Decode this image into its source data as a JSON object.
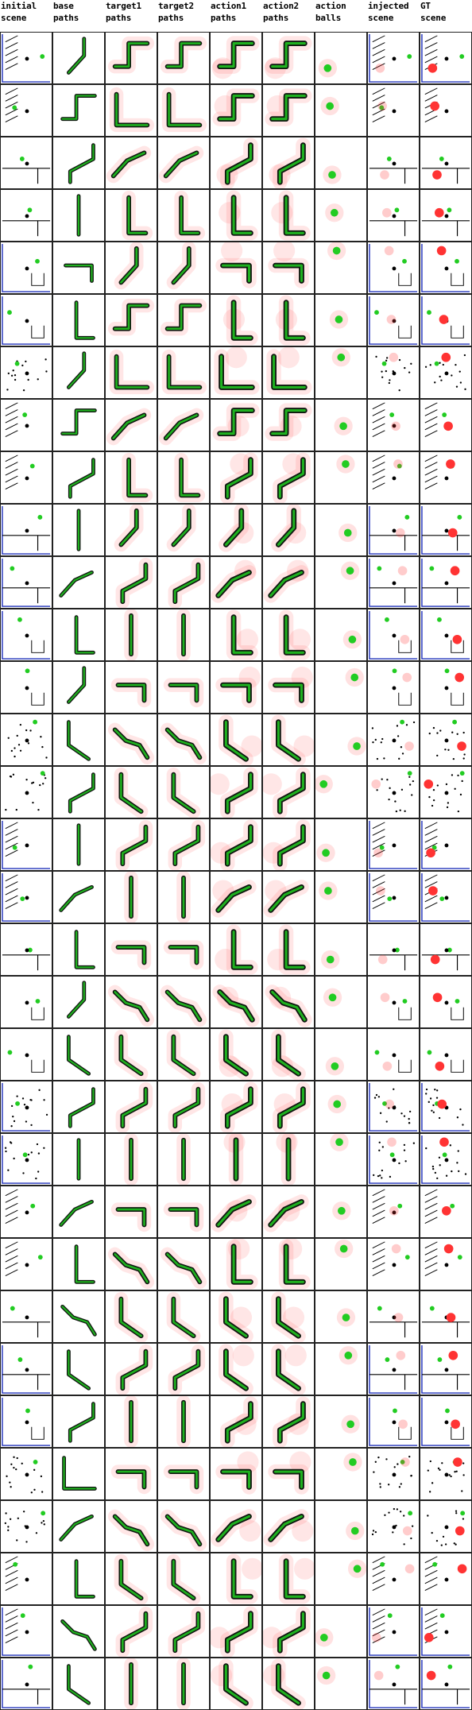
{
  "columns": [
    {
      "key": "initial",
      "label": "initial\nscene"
    },
    {
      "key": "base",
      "label": "base\npaths"
    },
    {
      "key": "target1",
      "label": "target1\npaths"
    },
    {
      "key": "target2",
      "label": "target2\npaths"
    },
    {
      "key": "action1",
      "label": "action1\npaths"
    },
    {
      "key": "action2",
      "label": "action2\npaths"
    },
    {
      "key": "balls",
      "label": "action\nballs"
    },
    {
      "key": "injected",
      "label": "injected\nscene"
    },
    {
      "key": "gt",
      "label": "GT\nscene"
    }
  ],
  "row_count": 32,
  "colors": {
    "green": "#22cc22",
    "red": "#ff3333",
    "blue": "#2233bb",
    "black": "#000000",
    "grid_border": "#222222"
  }
}
